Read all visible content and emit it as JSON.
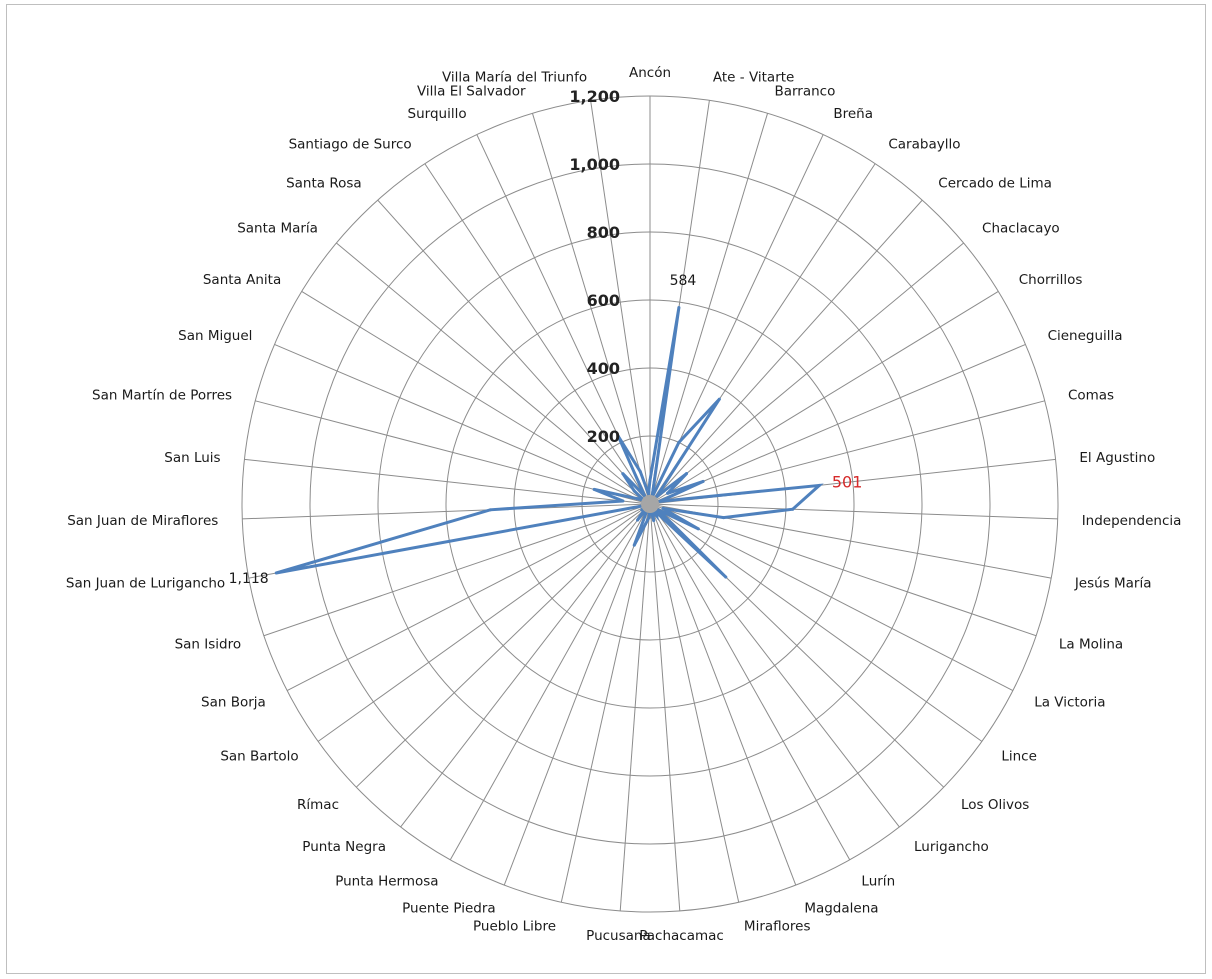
{
  "chart_data": {
    "type": "radar",
    "title": "",
    "categories": [
      "Ancón",
      "Ate - Vitarte",
      "Barranco",
      "Breña",
      "Carabayllo",
      "Cercado de Lima",
      "Chaclacayo",
      "Chorrillos",
      "Cieneguilla",
      "Comas",
      "El Agustino",
      "Independencia",
      "Jesús María",
      "La Molina",
      "La Victoria",
      "Lince",
      "Los Olivos",
      "Lurigancho",
      "Lurín",
      "Magdalena",
      "Miraflores",
      "Pachacamac",
      "Pucusana",
      "Pueblo Libre",
      "Puente Piedra",
      "Punta Hermosa",
      "Punta Negra",
      "Rímac",
      "San Bartolo",
      "San Borja",
      "San Isidro",
      "San Juan de Lurigancho",
      "San Juan de Miraflores",
      "San Luis",
      "San Martín de Porres",
      "San Miguel",
      "Santa Anita",
      "Santa María",
      "Santa Rosa",
      "Santiago de Surco",
      "Surquillo",
      "Villa El Salvador",
      "Villa María del Triunfo"
    ],
    "series": [
      {
        "name": "",
        "color": "#4f81bd",
        "values": [
          70,
          584,
          20,
          200,
          370,
          30,
          140,
          60,
          170,
          30,
          501,
          420,
          220,
          40,
          160,
          30,
          310,
          30,
          40,
          20,
          50,
          10,
          40,
          60,
          130,
          10,
          60,
          20,
          30,
          10,
          10,
          1118,
          470,
          80,
          170,
          40,
          20,
          60,
          120,
          30,
          220,
          100,
          30
        ]
      }
    ],
    "rmax": 1200,
    "ticks": [
      "200",
      "400",
      "600",
      "800",
      "1,000",
      "1,200"
    ],
    "tick_values": [
      200,
      400,
      600,
      800,
      1000,
      1200
    ],
    "data_labels": [
      {
        "category": "Ate - Vitarte",
        "text": "584",
        "color": "#1a1a1a"
      },
      {
        "category": "El Agustino",
        "text": "501",
        "color": "#d62a2a"
      },
      {
        "category": "San Juan de Lurigancho",
        "text": "1,118",
        "color": "#1a1a1a"
      }
    ],
    "grid": true,
    "legend": "none"
  }
}
